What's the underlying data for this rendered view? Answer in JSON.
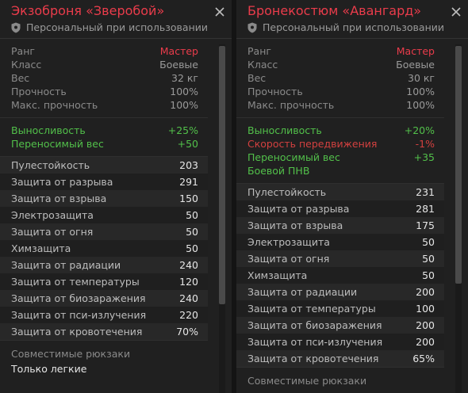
{
  "left": {
    "title": "Экзоброня «Зверобой»",
    "subtitle": "Персональный при использовании",
    "info": [
      {
        "label": "Ранг",
        "value": "Мастер"
      },
      {
        "label": "Класс",
        "value": "Боевые"
      },
      {
        "label": "Вес",
        "value": "32 кг"
      },
      {
        "label": "Прочность",
        "value": "100%"
      },
      {
        "label": "Макс. прочность",
        "value": "100%"
      }
    ],
    "bonuses": [
      {
        "label": "Выносливость",
        "value": "+25%",
        "color": "green"
      },
      {
        "label": "Переносимый вес",
        "value": "+50",
        "color": "green"
      }
    ],
    "protections": [
      {
        "label": "Пулестойкость",
        "value": "203"
      },
      {
        "label": "Защита от разрыва",
        "value": "291"
      },
      {
        "label": "Защита от взрыва",
        "value": "150"
      },
      {
        "label": "Электрозащита",
        "value": "50"
      },
      {
        "label": "Защита от огня",
        "value": "50"
      },
      {
        "label": "Химзащита",
        "value": "50"
      },
      {
        "label": "Защита от радиации",
        "value": "240"
      },
      {
        "label": "Защита от температуры",
        "value": "120"
      },
      {
        "label": "Защита от биозаражения",
        "value": "240"
      },
      {
        "label": "Защита от пси-излучения",
        "value": "220"
      },
      {
        "label": "Защита от кровотечения",
        "value": "70%"
      }
    ],
    "compat_label": "Совместимые рюкзаки",
    "compat_value": "Только легкие"
  },
  "right": {
    "title": "Бронекостюм «Авангард»",
    "subtitle": "Персональный при использовании",
    "info": [
      {
        "label": "Ранг",
        "value": "Мастер"
      },
      {
        "label": "Класс",
        "value": "Боевые"
      },
      {
        "label": "Вес",
        "value": "30 кг"
      },
      {
        "label": "Прочность",
        "value": "100%"
      },
      {
        "label": "Макс. прочность",
        "value": "100%"
      }
    ],
    "bonuses": [
      {
        "label": "Выносливость",
        "value": "+20%",
        "color": "green"
      },
      {
        "label": "Скорость передвижения",
        "value": "-1%",
        "color": "red"
      },
      {
        "label": "Переносимый вес",
        "value": "+35",
        "color": "green"
      },
      {
        "label": "Боевой ПНВ",
        "value": "",
        "color": "green"
      }
    ],
    "protections": [
      {
        "label": "Пулестойкость",
        "value": "231"
      },
      {
        "label": "Защита от разрыва",
        "value": "281"
      },
      {
        "label": "Защита от взрыва",
        "value": "175"
      },
      {
        "label": "Электрозащита",
        "value": "50"
      },
      {
        "label": "Защита от огня",
        "value": "50"
      },
      {
        "label": "Химзащита",
        "value": "50"
      },
      {
        "label": "Защита от радиации",
        "value": "200"
      },
      {
        "label": "Защита от температуры",
        "value": "100"
      },
      {
        "label": "Защита от биозаражения",
        "value": "200"
      },
      {
        "label": "Защита от пси-излучения",
        "value": "200"
      },
      {
        "label": "Защита от кровотечения",
        "value": "65%"
      }
    ],
    "compat_label": "Совместимые рюкзаки",
    "compat_value": ""
  },
  "colors": {
    "accent_red": "#ea3c4b",
    "bonus_green": "#52c04a",
    "bonus_red": "#d2403f"
  },
  "icons": {
    "close": "close-icon",
    "shield": "shield-icon"
  }
}
